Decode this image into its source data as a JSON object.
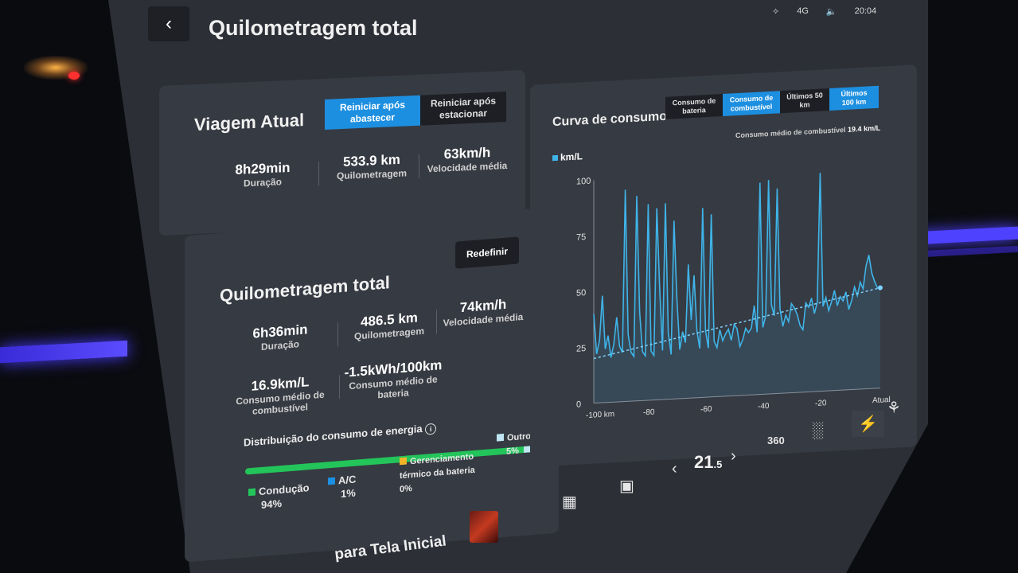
{
  "status": {
    "bluetooth_icon": "bluetooth-icon",
    "signal": "4G",
    "volume_icon": "volume-icon",
    "time": "20:04"
  },
  "header": {
    "back_icon": "chevron-left-icon",
    "title": "Quilometragem total"
  },
  "trip": {
    "title": "Viagem Atual",
    "toggle": {
      "on": "Reiniciar após abastecer",
      "off": "Reiniciar após estacionar"
    },
    "stats": [
      {
        "value": "8h29min",
        "label": "Duração"
      },
      {
        "value": "533.9 km",
        "label": "Quilometragem"
      },
      {
        "value": "63km/h",
        "label": "Velocidade média"
      }
    ]
  },
  "total": {
    "title": "Quilometragem total",
    "reset_label": "Redefinir",
    "stats": [
      {
        "value": "6h36min",
        "label": "Duração"
      },
      {
        "value": "486.5 km",
        "label": "Quilometragem"
      },
      {
        "value": "74km/h",
        "label": "Velocidade média"
      }
    ],
    "consumption": [
      {
        "value": "16.9km/L",
        "label": "Consumo médio de combustível"
      },
      {
        "value": "-1.5kWh/100km",
        "label": "Consumo médio de bateria"
      }
    ],
    "distribution": {
      "title": "Distribuição do consumo de energia",
      "info_icon": "info-icon",
      "items": [
        {
          "name": "Condução",
          "percent": "94%",
          "color": "#23c45a"
        },
        {
          "name": "A/C",
          "percent": "1%",
          "color": "#1d8fe0"
        },
        {
          "name": "Gerenciamento térmico da bateria",
          "percent": "0%",
          "color": "#f0b429"
        },
        {
          "name": "Outro",
          "percent": "5%",
          "color": "#bfe6f2"
        }
      ]
    }
  },
  "chart_panel": {
    "title": "Curva de consumo",
    "mode_tabs": [
      "Consumo de bateria",
      "Consumo de combustível"
    ],
    "range_tabs": [
      "Últimos 50 km",
      "Últimos 100 km"
    ],
    "avg_label": "Consumo médio de combustível",
    "avg_value": "19.4 km/L"
  },
  "chart_data": {
    "type": "line",
    "title": "",
    "series": [
      {
        "name": "km/L",
        "color": "#3fb4e8"
      }
    ],
    "ylabel": "",
    "ylim": [
      0,
      100
    ],
    "yticks": [
      "0",
      "25",
      "50",
      "75",
      "100"
    ],
    "xlim": [
      -100,
      0
    ],
    "xticks": [
      "-100 km",
      "-80",
      "-60",
      "-40",
      "-20",
      "Atual"
    ],
    "x": [
      -100,
      -99,
      -98,
      -97,
      -96,
      -95,
      -94,
      -93,
      -92,
      -91,
      -90,
      -89,
      -88,
      -87,
      -86,
      -85,
      -84,
      -83,
      -82,
      -81,
      -80,
      -79,
      -78,
      -77,
      -76,
      -75,
      -74,
      -73,
      -72,
      -71,
      -70,
      -69,
      -68,
      -67,
      -66,
      -65,
      -64,
      -63,
      -62,
      -61,
      -60,
      -59,
      -58,
      -57,
      -56,
      -55,
      -54,
      -53,
      -52,
      -51,
      -50,
      -49,
      -48,
      -47,
      -46,
      -45,
      -44,
      -43,
      -42,
      -41,
      -40,
      -39,
      -38,
      -37,
      -36,
      -35,
      -34,
      -33,
      -32,
      -31,
      -30,
      -29,
      -28,
      -27,
      -26,
      -25,
      -24,
      -23,
      -22,
      -21,
      -20,
      -19,
      -18,
      -17,
      -16,
      -15,
      -14,
      -13,
      -12,
      -11,
      -10,
      -9,
      -8,
      -7,
      -6,
      -5,
      -4,
      -3,
      -2,
      -1,
      0
    ],
    "values": [
      40,
      22,
      28,
      48,
      24,
      30,
      20,
      26,
      38,
      25,
      22,
      95,
      30,
      22,
      20,
      92,
      40,
      22,
      20,
      88,
      22,
      20,
      86,
      50,
      22,
      88,
      30,
      20,
      80,
      45,
      22,
      30,
      25,
      60,
      35,
      55,
      30,
      22,
      85,
      30,
      22,
      82,
      25,
      22,
      30,
      25,
      28,
      30,
      25,
      32,
      30,
      22,
      25,
      30,
      28,
      30,
      40,
      28,
      95,
      30,
      35,
      96,
      40,
      35,
      92,
      38,
      30,
      35,
      32,
      40,
      38,
      35,
      30,
      28,
      40,
      38,
      42,
      35,
      40,
      98,
      38,
      42,
      36,
      40,
      45,
      38,
      42,
      40,
      44,
      36,
      40,
      46,
      42,
      48,
      45,
      55,
      60,
      52,
      48,
      45,
      46
    ],
    "avg_line": {
      "start": 20,
      "end": 45
    }
  },
  "dock": {
    "apps_icon": "grid-icon",
    "car_icon": "car-icon",
    "temperature": "21",
    "temperature_decimal": ".5",
    "temp_down_icon": "chevron-left-icon",
    "temp_up_icon": "chevron-right-icon",
    "view360_label": "360",
    "seat_icon": "seat-icon",
    "energy_icon": "lightning-icon",
    "fan_icon": "fan-seat-icon"
  },
  "home": {
    "label": "para Tela Inicial"
  }
}
